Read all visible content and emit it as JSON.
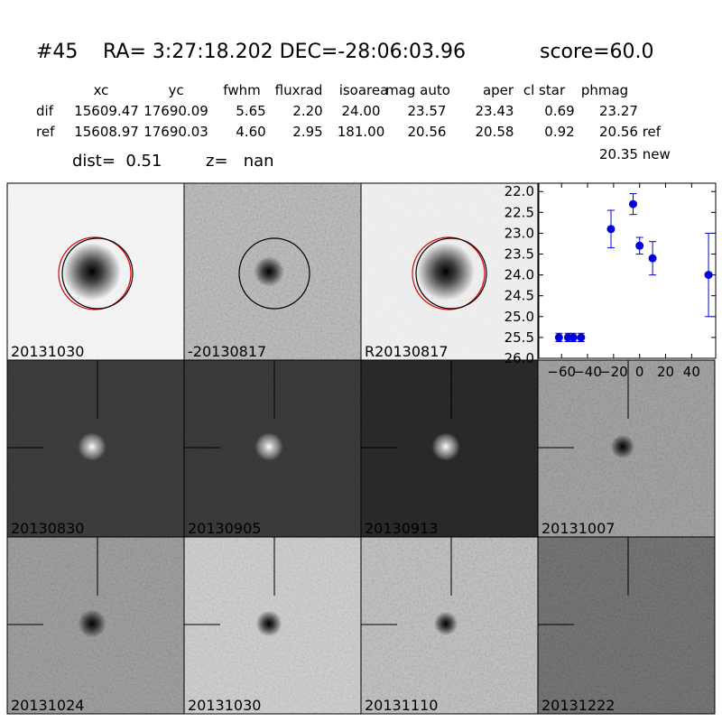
{
  "header": {
    "id": "#45",
    "coords": "RA= 3:27:18.202 DEC=-28:06:03.96",
    "score": "score=60.0"
  },
  "table": {
    "columns": [
      "xc",
      "yc",
      "fwhm",
      "fluxrad",
      "isoarea",
      "mag auto",
      "aper",
      "cl star",
      "phmag"
    ],
    "rows": [
      [
        "dif",
        "15609.47",
        "17690.09",
        "5.65",
        "2.20",
        "24.00",
        "23.57",
        "23.43",
        "0.69",
        "23.27"
      ],
      [
        "ref",
        "15608.97",
        "17690.03",
        "4.60",
        "2.95",
        "181.00",
        "20.56",
        "20.58",
        "0.92",
        "20.56 ref"
      ]
    ],
    "extra": "20.35 new"
  },
  "dist": "dist=  0.51",
  "z": "z=   nan",
  "stamps": [
    "20131030",
    "-20130817",
    "R20130817",
    "20130830",
    "20130905",
    "20130913",
    "20131007",
    "20131024",
    "20131030",
    "20131110",
    "20131222"
  ],
  "chart_data": {
    "type": "scatter",
    "color": "#0000dd",
    "x": [
      -62,
      -55,
      -51,
      -45,
      -22,
      -5,
      0,
      10,
      53
    ],
    "values": [
      25.5,
      25.5,
      25.5,
      25.5,
      22.9,
      22.3,
      23.3,
      23.6,
      24.0
    ],
    "errors": [
      0.1,
      0.1,
      0.1,
      0.1,
      0.45,
      0.25,
      0.2,
      0.4,
      1.0
    ],
    "xlim": [
      -77.5,
      58.5
    ],
    "ylim": [
      26.0,
      21.8
    ],
    "xticks": [
      {
        "value": -60,
        "label": "−60"
      },
      {
        "value": -40,
        "label": "−40"
      },
      {
        "value": -20,
        "label": "−20"
      },
      0,
      20,
      40
    ],
    "yticks": [
      {
        "value": 22,
        "label": "22.0"
      },
      {
        "value": 22.5,
        "label": "22.5"
      },
      {
        "value": 23,
        "label": "23.0"
      },
      {
        "value": 23.5,
        "label": "23.5"
      },
      {
        "value": 24,
        "label": "24.0"
      },
      {
        "value": 24.5,
        "label": "24.5"
      },
      {
        "value": 25,
        "label": "25.0"
      },
      {
        "value": 25.5,
        "label": "25.5"
      },
      {
        "value": 26,
        "label": "26.0"
      }
    ]
  }
}
